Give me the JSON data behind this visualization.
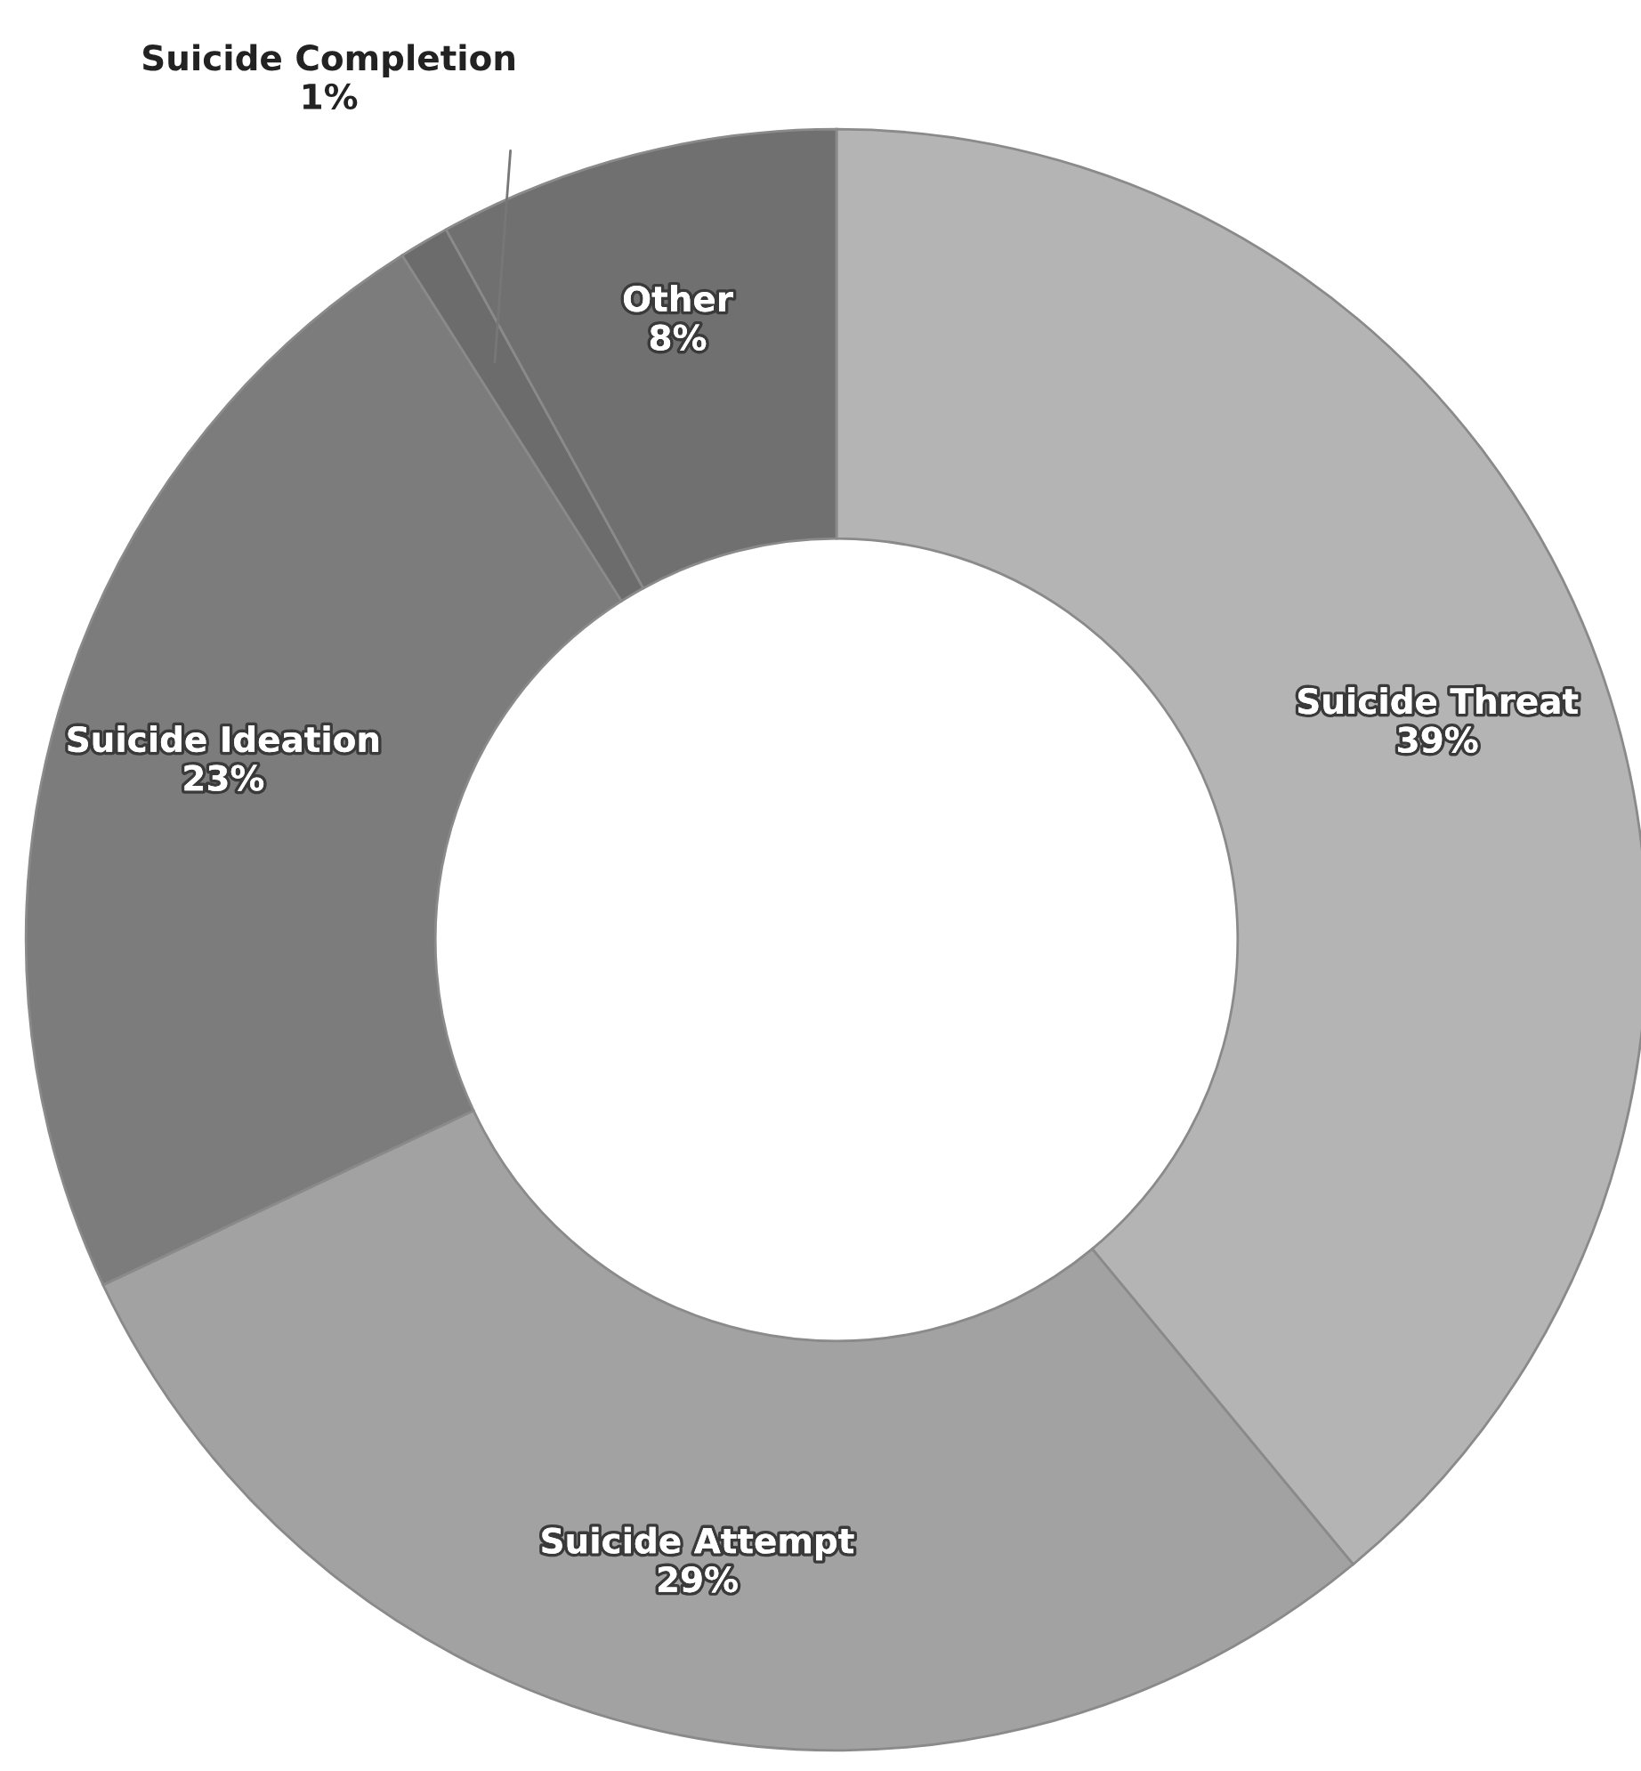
{
  "chart_data": {
    "type": "donut",
    "categories": [
      "Suicide Threat",
      "Suicide Attempt",
      "Suicide Ideation",
      "Suicide Completion",
      "Other"
    ],
    "values": [
      39,
      29,
      23,
      1,
      8
    ],
    "value_labels": [
      "39%",
      "29%",
      "23%",
      "1%",
      "8%"
    ],
    "colors": [
      "#b4b4b4",
      "#a2a2a2",
      "#7c7c7c",
      "#6c6c6c",
      "#707070"
    ],
    "legend": false
  }
}
